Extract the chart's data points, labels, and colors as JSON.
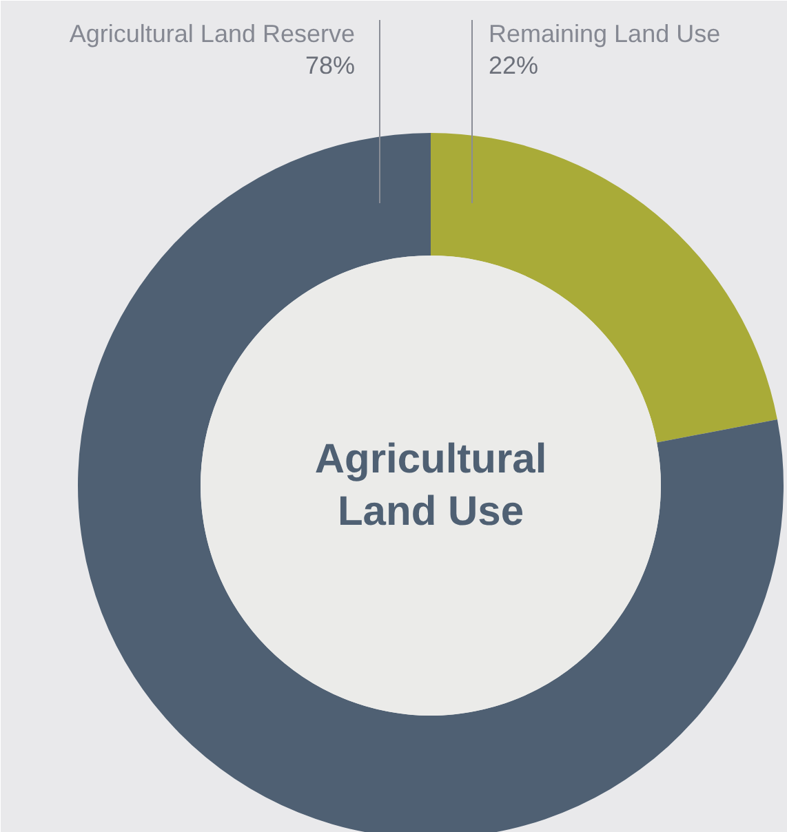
{
  "chart_data": {
    "type": "donut",
    "title": "Agricultural\nLand Use",
    "categories": [
      "Remaining Land Use",
      "Agricultural Land Reserve"
    ],
    "values": [
      22,
      78
    ],
    "value_labels": [
      "22%",
      "78%"
    ],
    "colors": [
      "#a9ab38",
      "#4f6073"
    ]
  }
}
